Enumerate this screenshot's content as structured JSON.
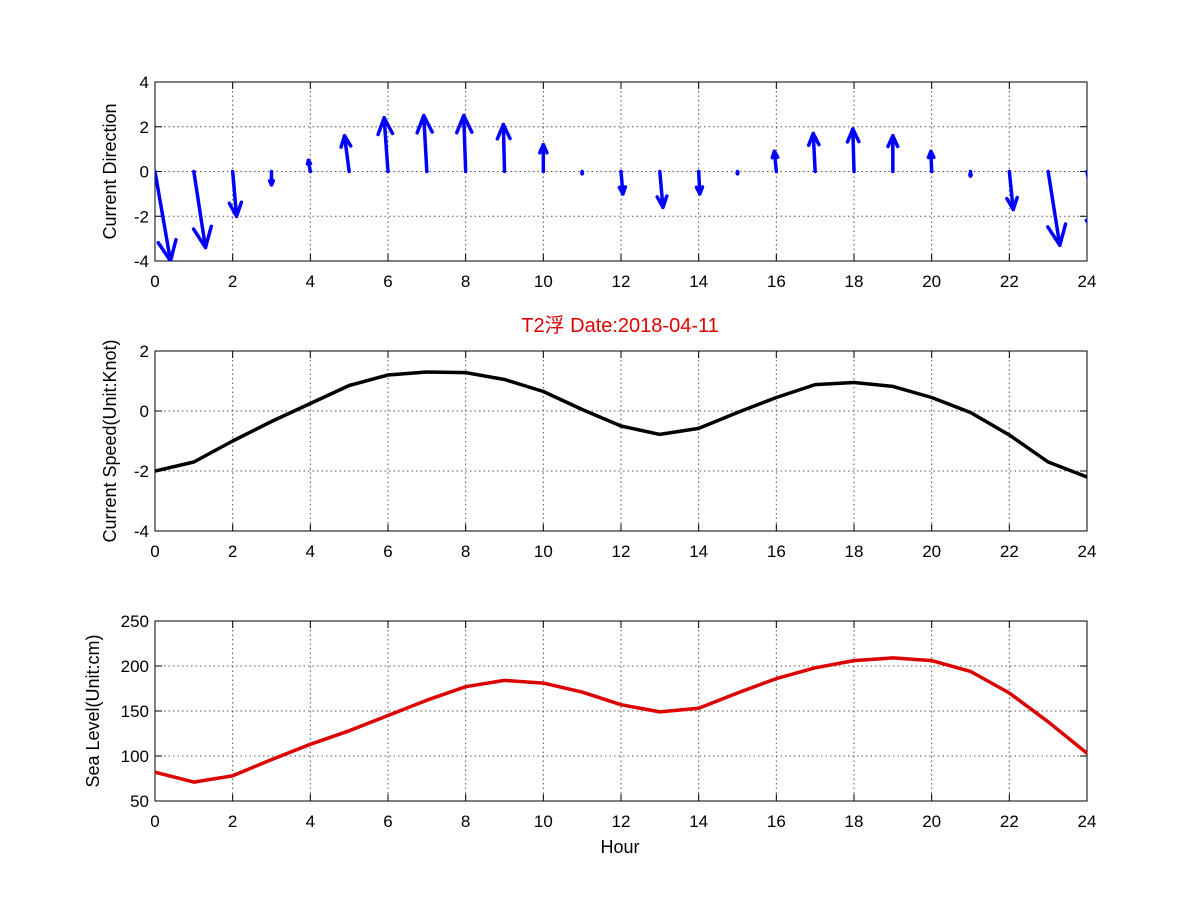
{
  "colors": {
    "arrows": "#0000ff",
    "speed": "#000000",
    "sea_level": "#dd0000",
    "title": "#dd0000"
  },
  "chart_data": [
    {
      "type": "quiver",
      "ylabel": "Current Direction",
      "xlim": [
        0,
        24
      ],
      "ylim": [
        -4,
        4
      ],
      "xticks": [
        0,
        2,
        4,
        6,
        8,
        10,
        12,
        14,
        16,
        18,
        20,
        22,
        24
      ],
      "yticks": [
        -4,
        -2,
        0,
        2,
        4
      ],
      "grid": true,
      "x": [
        0,
        1,
        2,
        3,
        4,
        5,
        6,
        7,
        8,
        9,
        10,
        11,
        12,
        13,
        14,
        15,
        16,
        17,
        18,
        19,
        20,
        21,
        22,
        23,
        24
      ],
      "u": [
        0.4,
        0.3,
        0.1,
        0.0,
        -0.05,
        -0.12,
        -0.1,
        -0.08,
        -0.05,
        -0.03,
        0.0,
        0.0,
        0.05,
        0.08,
        0.03,
        0.0,
        -0.05,
        -0.05,
        -0.03,
        0.0,
        -0.02,
        0.0,
        0.1,
        0.3,
        0.3
      ],
      "v": [
        -4.0,
        -3.4,
        -2.0,
        -0.6,
        0.5,
        1.6,
        2.4,
        2.5,
        2.5,
        2.1,
        1.2,
        -0.1,
        -1.0,
        -1.6,
        -1.0,
        -0.1,
        0.9,
        1.7,
        1.9,
        1.6,
        0.9,
        -0.2,
        -1.7,
        -3.3,
        -3.0
      ]
    },
    {
      "type": "line",
      "title": "T2浮    Date:2018-04-11",
      "ylabel": "Current Speed(Unit:Knot)",
      "xlim": [
        0,
        24
      ],
      "ylim": [
        -4,
        2
      ],
      "xticks": [
        0,
        2,
        4,
        6,
        8,
        10,
        12,
        14,
        16,
        18,
        20,
        22,
        24
      ],
      "yticks": [
        -4,
        -2,
        0,
        2
      ],
      "grid": true,
      "x": [
        0,
        1,
        2,
        3,
        4,
        5,
        6,
        7,
        8,
        9,
        10,
        11,
        12,
        13,
        14,
        15,
        16,
        17,
        18,
        19,
        20,
        21,
        22,
        23,
        24
      ],
      "values": [
        -2.0,
        -1.7,
        -1.0,
        -0.35,
        0.25,
        0.85,
        1.2,
        1.3,
        1.28,
        1.05,
        0.65,
        0.05,
        -0.5,
        -0.78,
        -0.58,
        -0.05,
        0.45,
        0.88,
        0.95,
        0.82,
        0.45,
        -0.05,
        -0.8,
        -1.7,
        -2.2
      ]
    },
    {
      "type": "line",
      "xlabel": "Hour",
      "ylabel": "Sea Level(Unit:cm)",
      "xlim": [
        0,
        24
      ],
      "ylim": [
        50,
        250
      ],
      "xticks": [
        0,
        2,
        4,
        6,
        8,
        10,
        12,
        14,
        16,
        18,
        20,
        22,
        24
      ],
      "yticks": [
        50,
        100,
        150,
        200,
        250
      ],
      "grid": true,
      "x": [
        0,
        1,
        2,
        3,
        4,
        5,
        6,
        7,
        8,
        9,
        10,
        11,
        12,
        13,
        14,
        15,
        16,
        17,
        18,
        19,
        20,
        21,
        22,
        23,
        24
      ],
      "values": [
        82,
        71,
        78,
        96,
        113,
        128,
        145,
        162,
        177,
        184,
        181,
        171,
        157,
        149,
        153,
        170,
        186,
        198,
        206,
        209,
        206,
        194,
        170,
        138,
        103
      ]
    }
  ]
}
